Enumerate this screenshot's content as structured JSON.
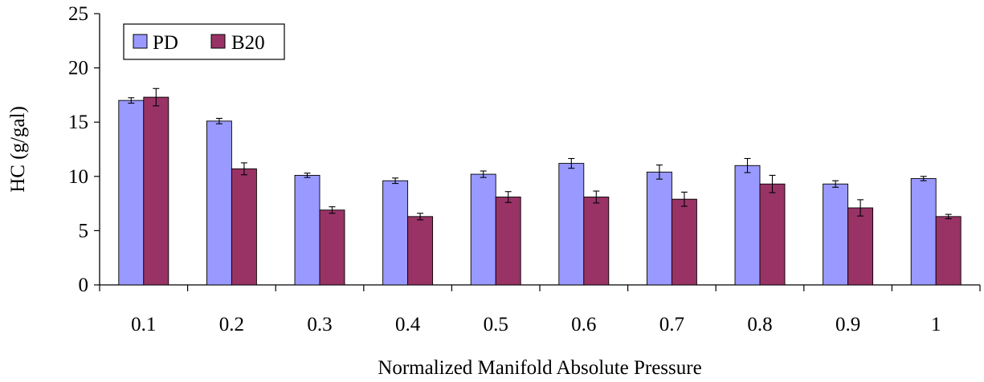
{
  "chart_data": {
    "type": "bar",
    "title": "",
    "xlabel": "Normalized Manifold Absolute Pressure",
    "ylabel": "HC (g/gal)",
    "ylim": [
      0,
      25
    ],
    "yticks": [
      "0",
      "5",
      "10",
      "15",
      "20",
      "25"
    ],
    "categories": [
      "0.1",
      "0.2",
      "0.3",
      "0.4",
      "0.5",
      "0.6",
      "0.7",
      "0.8",
      "0.9",
      "1"
    ],
    "series": [
      {
        "name": "PD",
        "color": "#9999ff",
        "values": [
          17.0,
          15.1,
          10.1,
          9.6,
          10.2,
          11.2,
          10.4,
          11.0,
          9.3,
          9.8
        ],
        "error": [
          0.25,
          0.25,
          0.2,
          0.25,
          0.3,
          0.45,
          0.65,
          0.65,
          0.3,
          0.2
        ]
      },
      {
        "name": "B20",
        "color": "#993366",
        "values": [
          17.3,
          10.7,
          6.9,
          6.3,
          8.1,
          8.1,
          7.9,
          9.3,
          7.1,
          6.3
        ],
        "error": [
          0.8,
          0.55,
          0.3,
          0.3,
          0.5,
          0.55,
          0.65,
          0.8,
          0.75,
          0.2
        ]
      }
    ],
    "grid": false,
    "legend_position": "top-left"
  }
}
